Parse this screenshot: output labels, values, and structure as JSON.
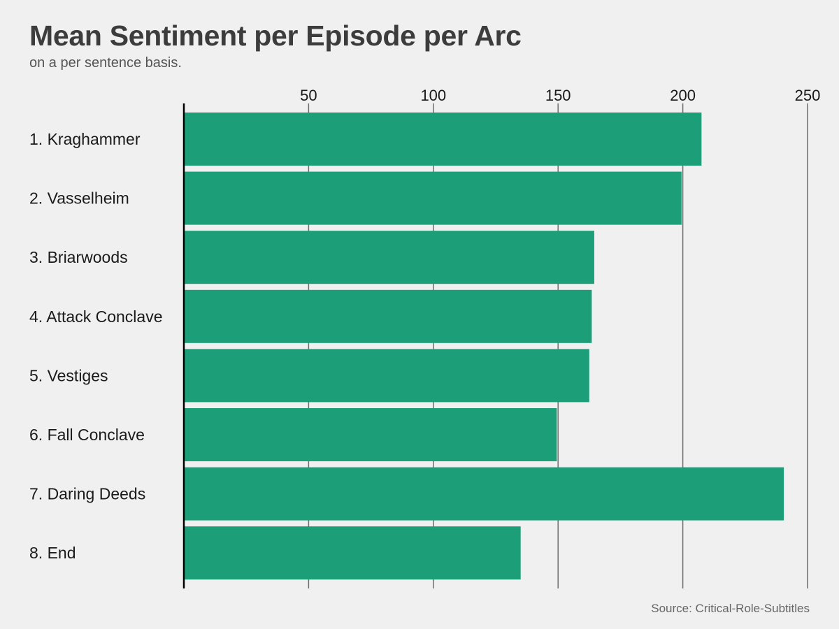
{
  "chart_data": {
    "type": "bar",
    "orientation": "horizontal",
    "title": "Mean Sentiment per Episode per Arc",
    "subtitle": "on a per sentence basis.",
    "source": "Source: Critical-Role-Subtitles",
    "categories": [
      "1. Kraghammer",
      "2. Vasselheim",
      "3. Briarwoods",
      "4. Attack Conclave",
      "5. Vestiges",
      "6. Fall Conclave",
      "7. Daring Deeds",
      "8. End"
    ],
    "values": [
      207.5,
      199.5,
      164.5,
      163.5,
      162.5,
      149.5,
      240.5,
      135
    ],
    "xticks": [
      "50",
      "100",
      "150",
      "200",
      "250"
    ],
    "xlim": [
      0,
      250
    ],
    "grid": "vertical",
    "tick_position": "top",
    "bar_color": "#1c9e78",
    "grid_color": "#6e6e6e",
    "baseline_color": "#000000"
  }
}
